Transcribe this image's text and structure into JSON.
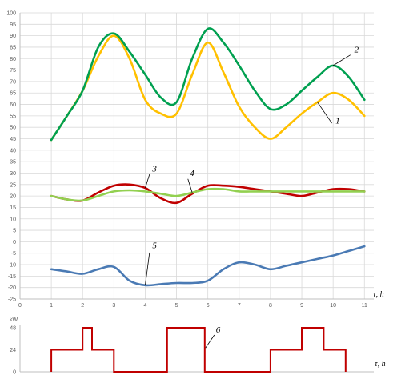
{
  "chart_data": [
    {
      "type": "line",
      "title": "",
      "xlabel": "τ, h",
      "ylabel": "",
      "xlim": [
        0,
        11.3
      ],
      "ylim": [
        -25,
        100
      ],
      "x_ticks": [
        0,
        1,
        2,
        3,
        4,
        5,
        6,
        7,
        8,
        9,
        10,
        11
      ],
      "y_ticks": [
        -25,
        -20,
        -15,
        -10,
        -5,
        0,
        5,
        10,
        15,
        20,
        25,
        30,
        35,
        40,
        45,
        50,
        55,
        60,
        65,
        70,
        75,
        80,
        85,
        90,
        95,
        100
      ],
      "grid": true,
      "series": [
        {
          "name": "1",
          "color": "#ffc000",
          "label_at": [
            10,
            51
          ],
          "x": [
            1,
            1.5,
            2,
            2.5,
            3,
            3.5,
            4,
            4.5,
            5,
            5.5,
            6,
            6.5,
            7,
            7.5,
            8,
            8.5,
            9,
            9.5,
            10,
            10.5,
            11
          ],
          "y": [
            44.5,
            55,
            66,
            81,
            90,
            80,
            62,
            56,
            56,
            73,
            87,
            74,
            59,
            50,
            45,
            50,
            56,
            61,
            65,
            62,
            55
          ]
        },
        {
          "name": "2",
          "color": "#00a050",
          "label_at": [
            10.6,
            82
          ],
          "x": [
            1,
            1.5,
            2,
            2.5,
            3,
            3.5,
            4,
            4.5,
            5,
            5.5,
            6,
            6.5,
            7,
            7.5,
            8,
            8.5,
            9,
            9.5,
            10,
            10.5,
            11
          ],
          "y": [
            44.5,
            55,
            66,
            85,
            91,
            83,
            73,
            63,
            61,
            80,
            93,
            87,
            77,
            66,
            58,
            60,
            66,
            72,
            77,
            72,
            62
          ]
        },
        {
          "name": "3",
          "color": "#c00000",
          "label_at": [
            4.15,
            30
          ],
          "x": [
            1,
            1.5,
            2,
            2.5,
            3,
            3.5,
            4,
            4.5,
            5,
            5.5,
            6,
            6.5,
            7,
            7.5,
            8,
            8.5,
            9,
            9.5,
            10,
            10.5,
            11
          ],
          "y": [
            20,
            18.5,
            18,
            21.5,
            24.5,
            25,
            23.5,
            19,
            17,
            21,
            24.5,
            24.5,
            24,
            23,
            22,
            21,
            20,
            21.5,
            23,
            23,
            22
          ]
        },
        {
          "name": "4",
          "color": "#92d050",
          "label_at": [
            5.35,
            28
          ],
          "x": [
            1,
            1.5,
            2,
            2.5,
            3,
            3.5,
            4,
            4.5,
            5,
            5.5,
            6,
            6.5,
            7,
            7.5,
            8,
            8.5,
            9,
            9.5,
            10,
            10.5,
            11
          ],
          "y": [
            20,
            18.5,
            18,
            20,
            22,
            22.5,
            22,
            21,
            20,
            21.5,
            23,
            23,
            22,
            22,
            22,
            22,
            22,
            22,
            22,
            22,
            22
          ]
        },
        {
          "name": "5",
          "color": "#4a7ab4",
          "label_at": [
            4.15,
            -3.5
          ],
          "x": [
            1,
            1.5,
            2,
            2.5,
            3,
            3.5,
            4,
            4.5,
            5,
            5.5,
            6,
            6.5,
            7,
            7.5,
            8,
            8.5,
            9,
            9.5,
            10,
            10.5,
            11
          ],
          "y": [
            -12,
            -13,
            -14,
            -12,
            -11,
            -17,
            -19,
            -18.5,
            -18,
            -18,
            -17,
            -12,
            -9,
            -10,
            -12,
            -10.5,
            -9,
            -7.5,
            -6,
            -4,
            -2
          ]
        }
      ]
    },
    {
      "type": "line",
      "step": true,
      "title": "",
      "xlabel": "τ, h",
      "ylabel": "kW",
      "xlim": [
        0,
        11.3
      ],
      "ylim": [
        0,
        48
      ],
      "y_ticks": [
        0,
        24,
        48
      ],
      "grid": false,
      "series": [
        {
          "name": "6",
          "color": "#c00000",
          "label_at": [
            5.9,
            48
          ],
          "x": [
            1,
            1,
            2,
            2,
            2.3,
            2.3,
            3,
            3,
            4.7,
            4.7,
            5.9,
            5.9,
            8,
            8,
            9,
            9,
            9.7,
            9.7,
            10.4,
            10.4
          ],
          "y": [
            0,
            24,
            24,
            48,
            48,
            24,
            24,
            0,
            0,
            48,
            48,
            0,
            0,
            24,
            24,
            48,
            48,
            24,
            24,
            0
          ]
        }
      ]
    }
  ]
}
